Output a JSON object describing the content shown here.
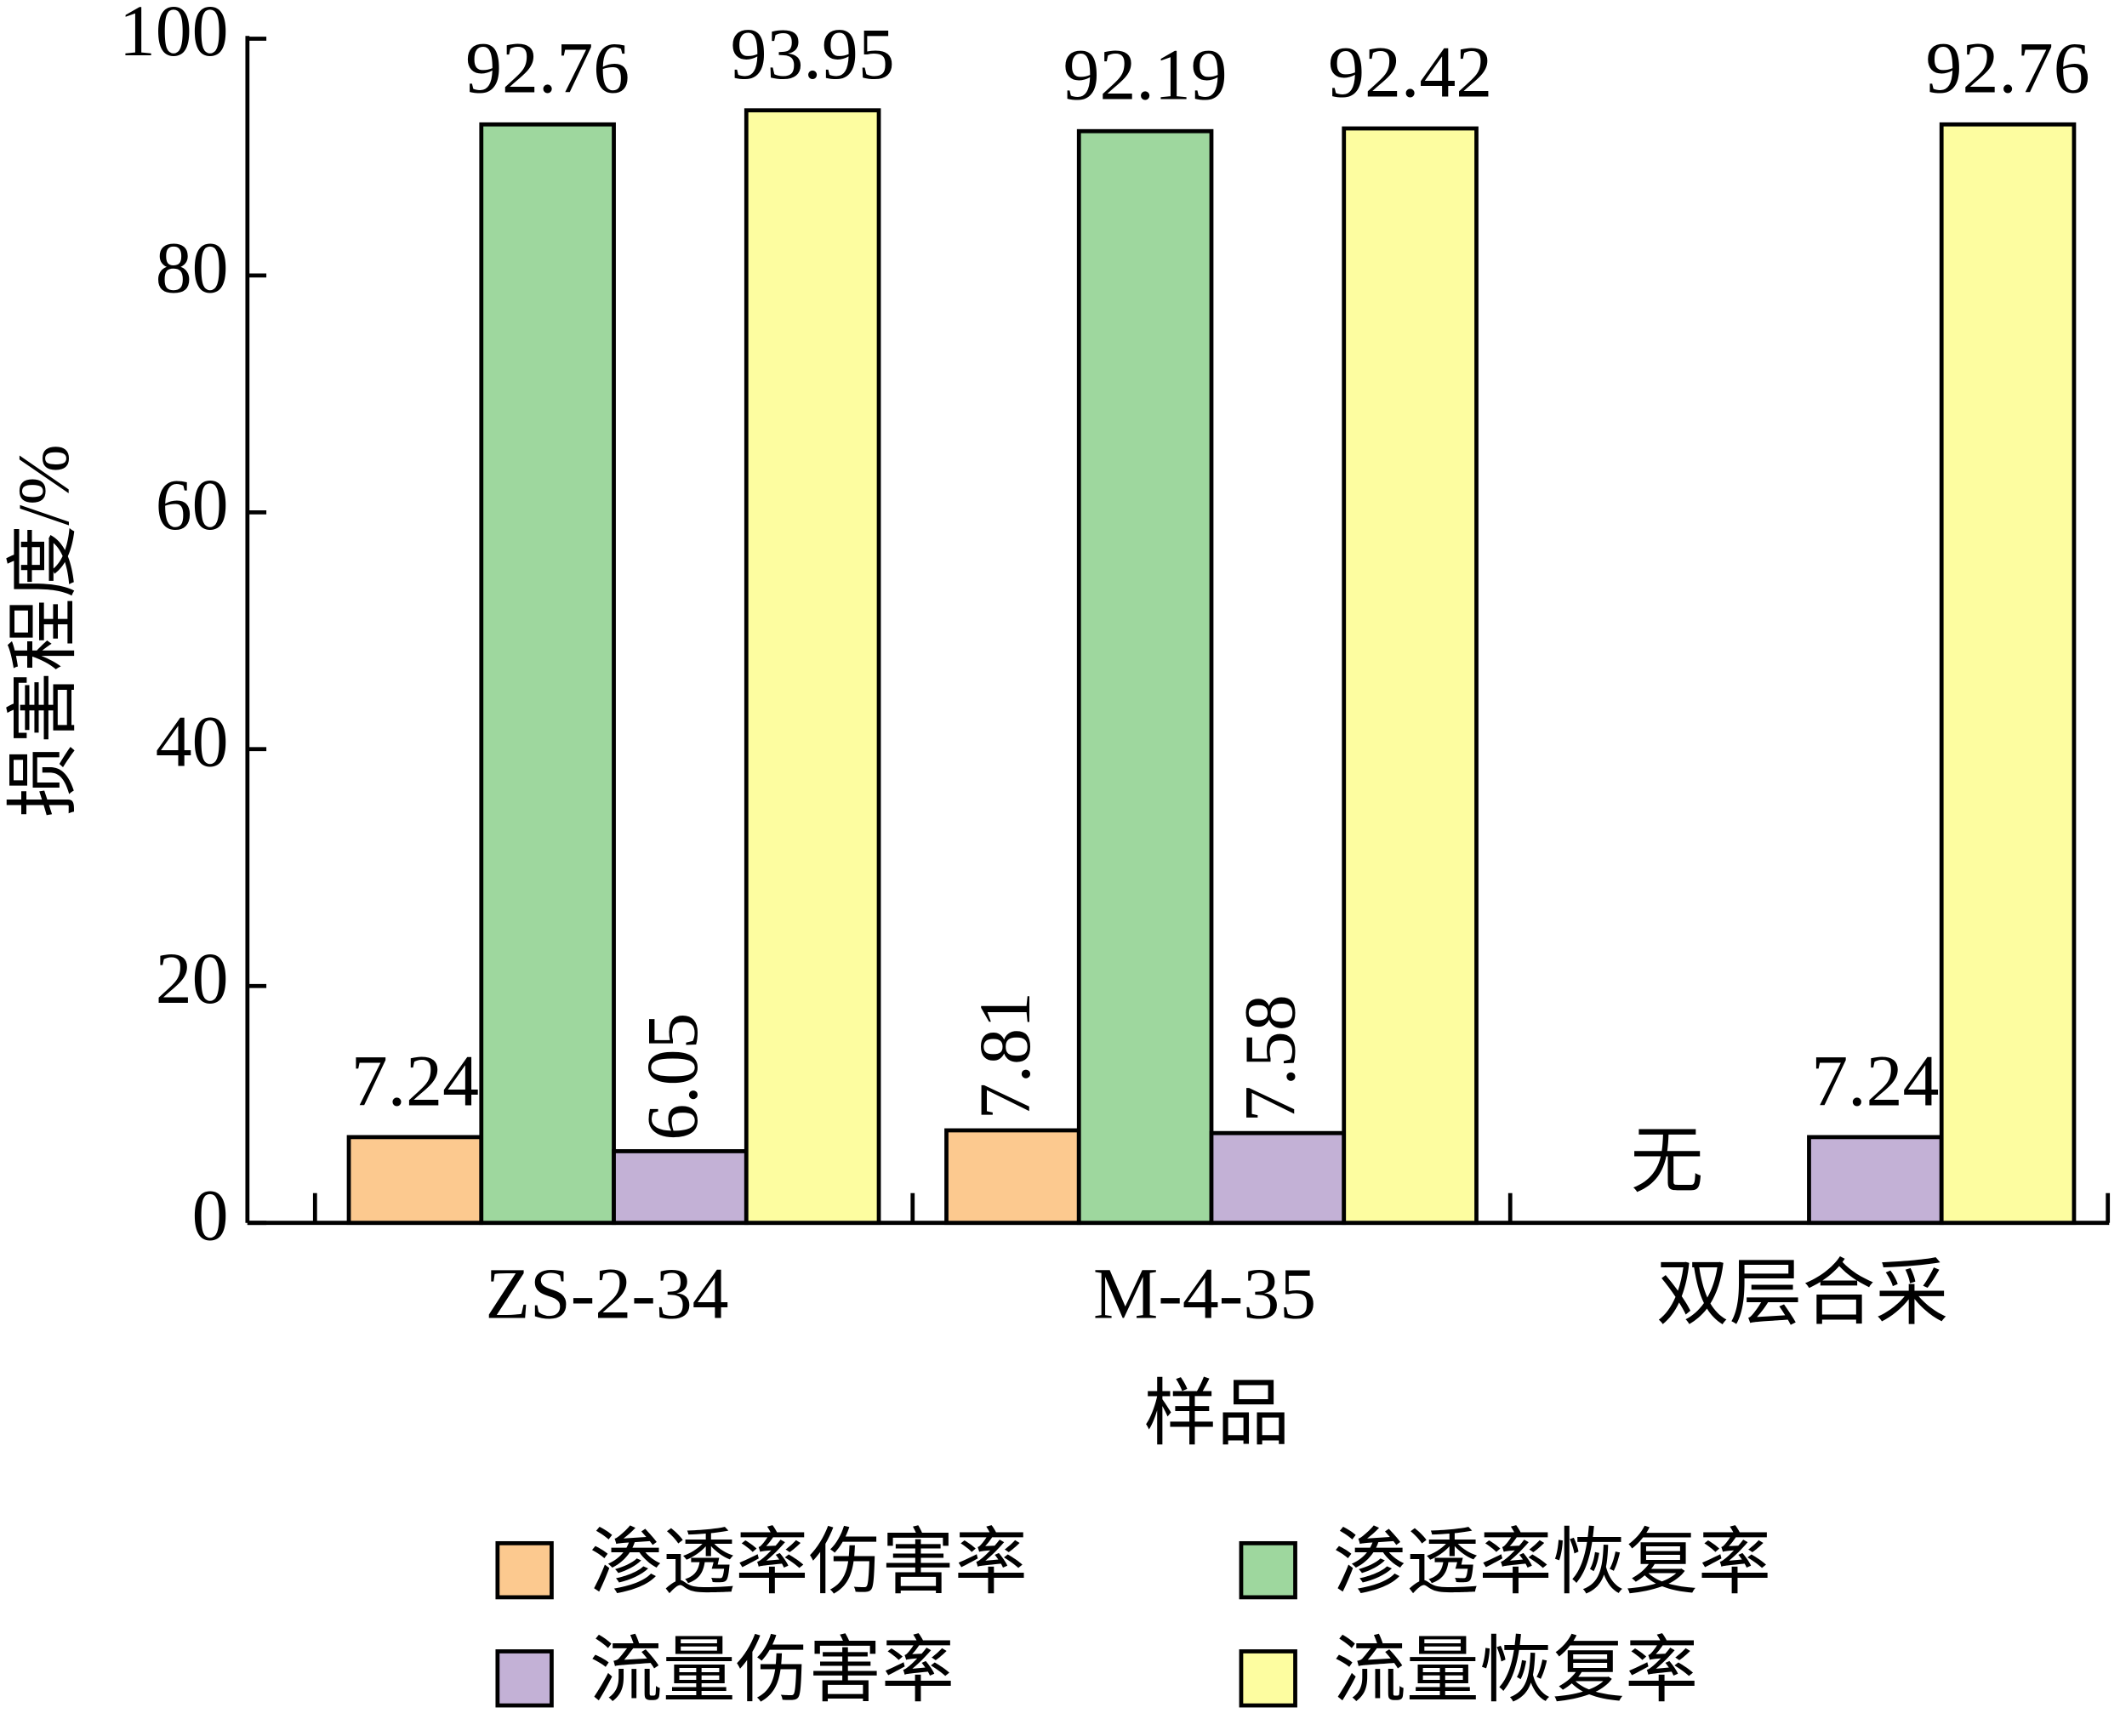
{
  "chart_data": {
    "type": "bar",
    "x_label": "样品",
    "y_label": "损害程度/%",
    "categories": [
      "ZS-2-34",
      "M-4-35",
      "双层合采"
    ],
    "series": [
      {
        "name": "渗透率伤害率",
        "color": "#fcc98f",
        "values": [
          7.24,
          7.81,
          null
        ]
      },
      {
        "name": "渗透率恢复率",
        "color": "#9ed79e",
        "values": [
          92.76,
          92.19,
          null
        ],
        "value_labels": [
          "92.76",
          "92.19",
          "无"
        ]
      },
      {
        "name": "流量伤害率",
        "color": "#c3b1d6",
        "values": [
          6.05,
          7.58,
          7.24
        ]
      },
      {
        "name": "流量恢复率",
        "color": "#fdfda0",
        "values": [
          93.95,
          92.42,
          92.76
        ]
      }
    ],
    "ylim": [
      0,
      100
    ],
    "yticks": [
      0,
      20,
      40,
      60,
      80,
      100
    ],
    "grid": false,
    "legend": "bottom"
  }
}
